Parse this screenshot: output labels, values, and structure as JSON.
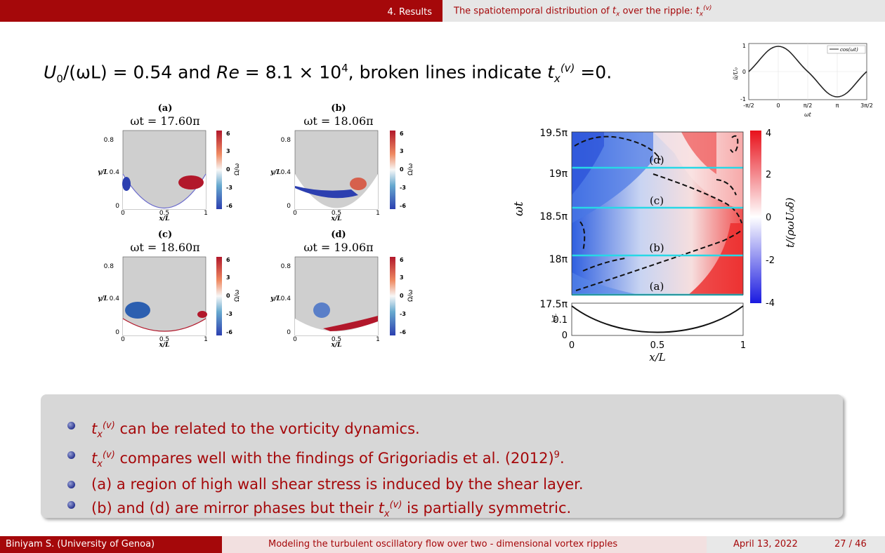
{
  "header": {
    "section": "4. Results",
    "subtitle_prefix": "The spatiotemporal distribution of ",
    "subtitle_suffix": " over the ripple: ",
    "var": "t",
    "var_sub": "x",
    "var_sup": "(v)"
  },
  "headline": {
    "part1": "U",
    "part1_sub": "0",
    "part1_rest": "/(ωL) = 0.54 and ",
    "re": "Re",
    "re_rest": " = 8.1 × 10",
    "re_exp": "4",
    "rest": ", broken lines indicate ",
    "end": " =0."
  },
  "vorticity": {
    "panels": [
      {
        "label": "(a)",
        "time": "ωt = 17.60π"
      },
      {
        "label": "(b)",
        "time": "ωt = 18.06π"
      },
      {
        "label": "(c)",
        "time": "ωt = 18.60π"
      },
      {
        "label": "(d)",
        "time": "ωt = 19.06π"
      }
    ],
    "ylabel": "y/L",
    "xlabel": "x/L",
    "yticks": [
      "0.8",
      "0.4",
      "0"
    ],
    "xticks": [
      "0",
      "0.5",
      "1"
    ],
    "cbar_label": "Ω/ω",
    "cbar_ticks": [
      "6",
      "3",
      "0",
      "-3",
      "-6"
    ]
  },
  "inset": {
    "ylabel": "ũ/U₀",
    "xlabel": "ωt",
    "legend": "cos(ωt)",
    "yticks": [
      "1",
      "0",
      "-1"
    ],
    "xticks": [
      "-π/2",
      "0",
      "π/2",
      "π",
      "3π/2"
    ]
  },
  "contour": {
    "ylabel": "ωt",
    "yticks": [
      "19.5π",
      "19π",
      "18.5π",
      "18π",
      "17.5π"
    ],
    "xlabel": "x/L",
    "xticks": [
      "0",
      "0.5",
      "1"
    ],
    "hlabel": "h/L",
    "hticks": [
      "0.1",
      "0"
    ],
    "line_labels": [
      "(d)",
      "(c)",
      "(b)",
      "(a)"
    ],
    "cbar_label": "t/(ρωU₀δ)",
    "cbar_ticks": [
      "4",
      "2",
      "0",
      "-2",
      "-4"
    ]
  },
  "bullets": [
    {
      "pre": "",
      "post": " can be related to the vorticity dynamics.",
      "sup": ""
    },
    {
      "pre": "",
      "post": " compares well with the findings of Grigoriadis et al. (2012)",
      "sup": "9",
      "end": "."
    },
    {
      "pre": "(a) a region of high wall shear stress is induced by the shear layer.",
      "post": "",
      "sup": ""
    },
    {
      "pre": "(b) and (d) are mirror phases but their ",
      "post": " is partially symmetric.",
      "sup": ""
    }
  ],
  "footer": {
    "author": "Biniyam S.  (University of Genoa)",
    "title": "Modeling the turbulent oscillatory flow over two - dimensional vortex ripples",
    "date": "April 13, 2022",
    "page": "27 / 46"
  }
}
